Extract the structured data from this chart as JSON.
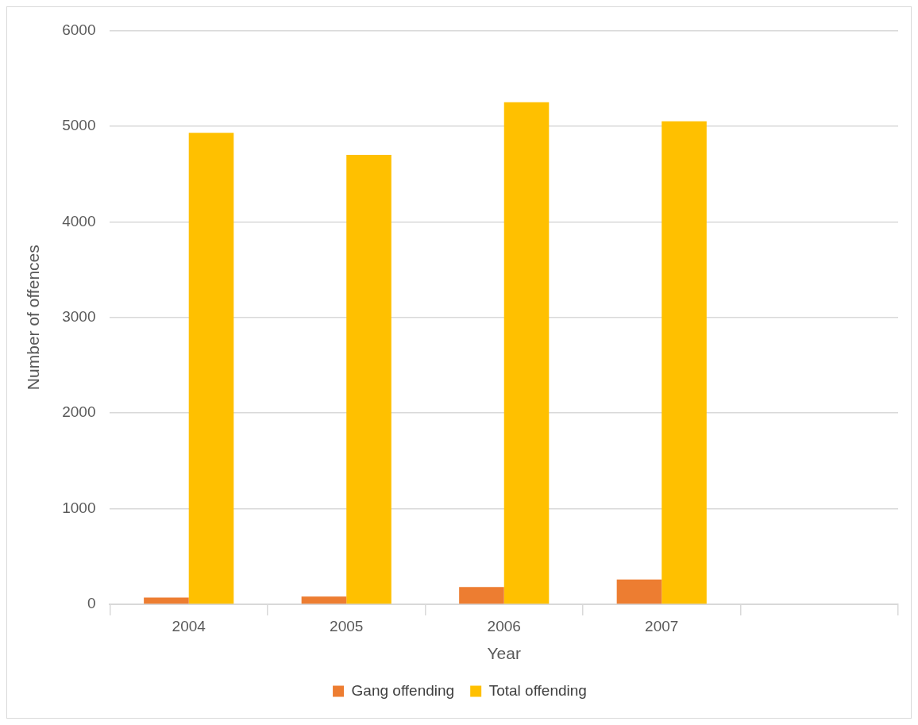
{
  "chart_data": {
    "type": "bar",
    "xlabel": "Year",
    "ylabel": "Number of offences",
    "categories": [
      "2004",
      "2005",
      "2006",
      "2007",
      null
    ],
    "series": [
      {
        "name": "Gang offending",
        "color": "#ed7d31",
        "values": [
          70,
          80,
          180,
          260,
          null
        ]
      },
      {
        "name": "Total offending",
        "color": "#ffc000",
        "values": [
          4930,
          4700,
          5250,
          5050,
          null
        ]
      }
    ],
    "ylim": [
      0,
      6000
    ],
    "yticks": [
      0,
      1000,
      2000,
      3000,
      4000,
      5000,
      6000
    ],
    "grid": "y",
    "legend": "bottom"
  }
}
